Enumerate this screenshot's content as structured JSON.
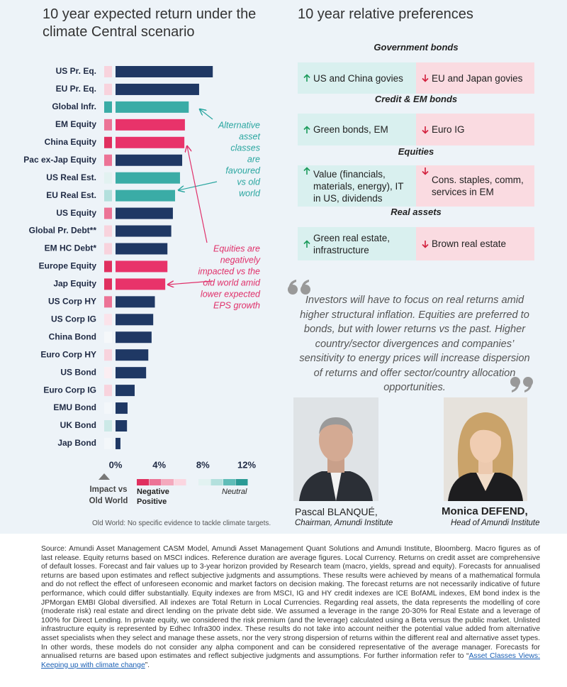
{
  "chart_data": {
    "type": "bar",
    "orientation": "horizontal",
    "title": "10 year expected return under the climate Central scenario",
    "categories": [
      "US Pr. Eq.",
      "EU Pr. Eq.",
      "Global Infr.",
      "EM Equity",
      "China Equity",
      "Pac ex-Jap Equity",
      "US Real Est.",
      "EU Real Est.",
      "US Equity",
      "Global Pr. Debt**",
      "EM HC Debt*",
      "Europe Equity",
      "Jap Equity",
      "US Corp HY",
      "US Corp IG",
      "China Bond",
      "Euro Corp HY",
      "US Bond",
      "Euro Corp IG",
      "EMU Bond",
      "UK Bond",
      "Jap Bond"
    ],
    "values": [
      8.9,
      7.65,
      6.7,
      6.35,
      6.3,
      6.1,
      5.9,
      5.45,
      5.25,
      5.1,
      4.75,
      4.75,
      4.55,
      3.6,
      3.45,
      3.3,
      3.0,
      2.8,
      1.75,
      1.1,
      1.05,
      0.45
    ],
    "colors": [
      "#1f3864",
      "#1f3864",
      "#3aaca6",
      "#e8336a",
      "#e8336a",
      "#1f3864",
      "#3aaca6",
      "#3aaca6",
      "#1f3864",
      "#1f3864",
      "#1f3864",
      "#e8336a",
      "#e8336a",
      "#1f3864",
      "#1f3864",
      "#1f3864",
      "#1f3864",
      "#1f3864",
      "#1f3864",
      "#1f3864",
      "#1f3864",
      "#1f3864"
    ],
    "impact_colors": [
      "#f8d3dd",
      "#f8d3dd",
      "#3aaca6",
      "#ec7396",
      "#e0305f",
      "#ec7396",
      "#e2f2f1",
      "#b3e0dd",
      "#ec7396",
      "#f8d3dd",
      "#f8d3dd",
      "#e0305f",
      "#e0305f",
      "#ec7396",
      "#fbe3ea",
      "#f5f8fa",
      "#f8d3dd",
      "#fbeef2",
      "#f8d3dd",
      "#f3f7fa",
      "#cce9e7",
      "#f3f7fa"
    ],
    "xlim": [
      0,
      12
    ],
    "xticks": [
      {
        "value": 0,
        "label": "0%"
      },
      {
        "value": 4,
        "label": "4%"
      },
      {
        "value": 8,
        "label": "8%"
      },
      {
        "value": 12,
        "label": "12%"
      }
    ],
    "annotations": [
      {
        "lines": [
          "Alternative",
          "asset",
          "classes",
          "are",
          "favoured",
          "vs old",
          "world"
        ],
        "color": "#2aa6a0"
      },
      {
        "lines": [
          "Equities are",
          "negatively",
          "impacted vs the",
          "old world amid",
          "lower expected",
          "EPS growth"
        ],
        "color": "#e0306a"
      }
    ],
    "impact_legend": {
      "title": [
        "Impact vs",
        "Old World"
      ],
      "negative": "Negative",
      "positive": "Positive",
      "neutral": "Neutral",
      "colors": [
        "#e0305f",
        "#ec7396",
        "#f4a9bd",
        "#fbd6e0",
        "#e2f2f1",
        "#b3e0dd",
        "#5fbdb8",
        "#2a9a95"
      ]
    },
    "footnote": "Old World: No specific evidence to tackle climate targets."
  },
  "preferences": {
    "title": "10 year relative preferences",
    "sections": [
      {
        "header": "Government bonds",
        "positive": "US and China govies",
        "negative": "EU and Japan govies"
      },
      {
        "header": "Credit & EM bonds",
        "positive": "Green bonds, EM",
        "negative": "Euro IG"
      },
      {
        "header": "Equities",
        "positive": "Value (financials, materials, energy), IT in US, dividends",
        "negative": "Cons. staples, comm, services in EM"
      },
      {
        "header": "Real assets",
        "positive": "Green real estate, infrastructure",
        "negative": "Brown real estate"
      }
    ]
  },
  "quote": "Investors will have to focus on real returns amid higher structural inflation. Equities are preferred to bonds, but with lower returns vs the past. Higher country/sector divergences and companies’ sensitivity to energy prices will increase dispersion of returns and offer sector/country allocation opportunities.",
  "people": [
    {
      "name": "Pascal BLANQUÉ,",
      "role": "Chairman, Amundi Institute"
    },
    {
      "name": "Monica DEFEND,",
      "role": "Head of Amundi Institute"
    }
  ],
  "source": {
    "text": "Source: Amundi Asset Management CASM Model, Amundi Asset Management Quant Solutions and Amundi Institute, Bloomberg. Macro figures as of last release. Equity returns based on MSCI indices. Reference duration are average figures. Local Currency. Returns on credit asset are comprehensive of default losses. Forecast and fair values up to 3-year horizon provided by Research team (macro, yields, spread and equity). Forecasts for annualised returns are based upon estimates and reflect subjective judgments and assumptions. These results were achieved by means of a mathematical formula and do not reflect the effect of unforeseen economic and market factors on decision making. The forecast returns are not necessarily indicative of future performance, which could differ substantially. Equity indexes are from MSCI, IG and HY credit indexes are ICE BofAML indexes, EM bond index is the JPMorgan EMBI Global diversified. All indexes are Total Return in Local Currencies. Regarding real assets, the data represents the modelling of core (moderate risk) real estate and direct lending on the private debt side. We assumed a leverage in the range 20-30% for Real Estate and a leverage of 100% for Direct Lending. In private equity, we considered the risk premium (and the leverage) calculated using a Beta versus the public market. Unlisted infrastructure equity is represented by Edhec Infra300 index. These results do not take into account neither the potential value added from alternative asset specialists when they select and manage these assets, nor the very strong dispersion of returns within the different real and alternative asset types. In other words, these models do not consider any alpha component and can be considered representative of the average manager. Forecasts for annualised returns are based upon estimates and reflect subjective judgments and assumptions. For further information refer to “",
    "link": "Asset Classes Views: Keeping up with climate change",
    "end": "”."
  }
}
